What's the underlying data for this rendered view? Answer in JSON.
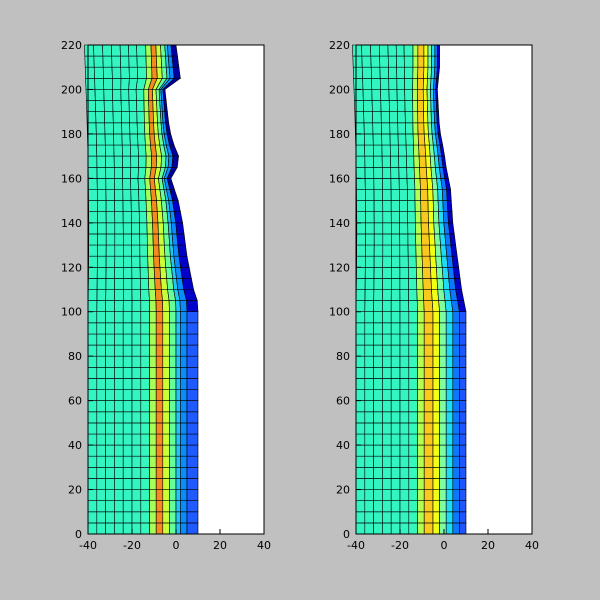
{
  "figure": {
    "background": "#c0c0c0",
    "axes_background": "#ffffff",
    "mesh_line_color": "#000000"
  },
  "colormap": {
    "name": "jet",
    "palette": [
      "#00008f",
      "#0000ff",
      "#0080ff",
      "#00ffff",
      "#80ff80",
      "#ffff00",
      "#ff8000",
      "#ff0000",
      "#800000"
    ]
  },
  "chart_data": [
    {
      "type": "heatmap",
      "title": "",
      "xlabel": "",
      "ylabel": "",
      "xlim": [
        -40,
        40
      ],
      "ylim": [
        0,
        220
      ],
      "xticks": [
        "-40",
        "-20",
        "0",
        "20",
        "40"
      ],
      "yticks": [
        "0",
        "20",
        "40",
        "60",
        "80",
        "100",
        "120",
        "140",
        "160",
        "180",
        "200",
        "220"
      ],
      "grid": false,
      "mesh": {
        "x_left": -40,
        "right_boundary_profile": [
          [
            0,
            10
          ],
          [
            104,
            10
          ],
          [
            110,
            8
          ],
          [
            125,
            5
          ],
          [
            140,
            3
          ],
          [
            150,
            1
          ],
          [
            162,
            -3
          ],
          [
            167,
            3
          ],
          [
            172,
            0
          ],
          [
            182,
            -3
          ],
          [
            200,
            -5
          ],
          [
            205,
            2
          ],
          [
            220,
            0
          ]
        ],
        "columns": [
          {
            "x": -40,
            "color": "#33f5c2"
          },
          {
            "x": -36,
            "color": "#33f5c2"
          },
          {
            "x": -32,
            "color": "#33f5c2"
          },
          {
            "x": -28,
            "color": "#33f5c2"
          },
          {
            "x": -24,
            "color": "#33f5c2"
          },
          {
            "x": -20,
            "color": "#33f5c2"
          },
          {
            "x": -16,
            "color": "#36f7be"
          },
          {
            "x": -12,
            "color": "#a6ff59"
          },
          {
            "x": -9,
            "color": "#f58a1e"
          },
          {
            "x": -6,
            "color": "#c8ff37"
          },
          {
            "x": -3,
            "color": "#66ff99"
          },
          {
            "x": 0,
            "color": "#1ec8f0"
          },
          {
            "x": 2,
            "color": "#0a8cff"
          },
          {
            "x": 5,
            "color": "#1e5aff"
          }
        ],
        "row_spacing": 5
      }
    },
    {
      "type": "heatmap",
      "title": "",
      "xlabel": "",
      "ylabel": "",
      "xlim": [
        -40,
        40
      ],
      "ylim": [
        0,
        220
      ],
      "xticks": [
        "-40",
        "-20",
        "0",
        "20",
        "40"
      ],
      "yticks": [
        "0",
        "20",
        "40",
        "60",
        "80",
        "100",
        "120",
        "140",
        "160",
        "180",
        "200",
        "220"
      ],
      "grid": false,
      "mesh": {
        "x_left": -40,
        "right_boundary_profile": [
          [
            0,
            10
          ],
          [
            100,
            10
          ],
          [
            110,
            8
          ],
          [
            125,
            6
          ],
          [
            140,
            4
          ],
          [
            155,
            3
          ],
          [
            165,
            1
          ],
          [
            172,
            0
          ],
          [
            182,
            -2
          ],
          [
            200,
            -3
          ],
          [
            210,
            -2
          ],
          [
            220,
            -2
          ]
        ],
        "columns": [
          {
            "x": -40,
            "color": "#33f5c2"
          },
          {
            "x": -36,
            "color": "#33f5c2"
          },
          {
            "x": -32,
            "color": "#33f5c2"
          },
          {
            "x": -28,
            "color": "#33f5c2"
          },
          {
            "x": -24,
            "color": "#33f5c2"
          },
          {
            "x": -20,
            "color": "#33f5c2"
          },
          {
            "x": -16,
            "color": "#36f7be"
          },
          {
            "x": -12,
            "color": "#b0ff52"
          },
          {
            "x": -9,
            "color": "#fac81e"
          },
          {
            "x": -5,
            "color": "#f0ff14"
          },
          {
            "x": -2,
            "color": "#7dffa0"
          },
          {
            "x": 1,
            "color": "#1edcf5"
          },
          {
            "x": 4,
            "color": "#0a78ff"
          },
          {
            "x": 7,
            "color": "#1e55ff"
          }
        ],
        "row_spacing": 5
      }
    }
  ]
}
